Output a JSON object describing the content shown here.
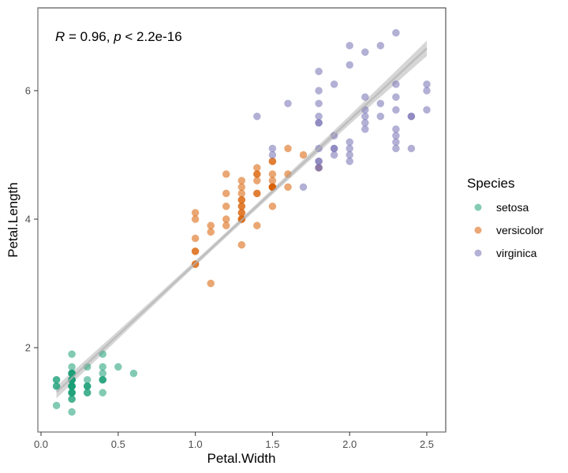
{
  "chart_data": {
    "type": "scatter",
    "title": "",
    "xlabel": "Petal.Width",
    "ylabel": "Petal.Length",
    "xlim": [
      -0.02,
      2.62
    ],
    "ylim": [
      0.67,
      7.27
    ],
    "x_ticks": [
      0.0,
      0.5,
      1.0,
      1.5,
      2.0,
      2.5
    ],
    "x_tick_labels": [
      "0.0",
      "0.5",
      "1.0",
      "1.5",
      "2.0",
      "2.5"
    ],
    "y_ticks": [
      2,
      4,
      6
    ],
    "y_tick_labels": [
      "2",
      "4",
      "6"
    ],
    "grid": false,
    "annotation": {
      "r_symbol": "R",
      "r_text": " = 0.96, ",
      "p_symbol": "p",
      "p_text": " < 2.2e-16"
    },
    "legend": {
      "title": "Species",
      "placement": "right"
    },
    "regression": {
      "intercept": 1.0836,
      "slope": 2.2299,
      "x_range": [
        0.1,
        2.5
      ],
      "ci_halfwidth_ends": 0.12,
      "ci_halfwidth_mid": 0.04,
      "x_mean": 1.199
    },
    "series": [
      {
        "name": "setosa",
        "color": "#1b9e77",
        "x": [
          0.2,
          0.2,
          0.2,
          0.2,
          0.2,
          0.4,
          0.3,
          0.2,
          0.2,
          0.1,
          0.2,
          0.2,
          0.1,
          0.1,
          0.2,
          0.4,
          0.4,
          0.3,
          0.3,
          0.3,
          0.2,
          0.4,
          0.2,
          0.5,
          0.2,
          0.2,
          0.4,
          0.2,
          0.2,
          0.2,
          0.2,
          0.4,
          0.1,
          0.2,
          0.2,
          0.2,
          0.2,
          0.1,
          0.2,
          0.2,
          0.3,
          0.3,
          0.2,
          0.6,
          0.4,
          0.3,
          0.2,
          0.2,
          0.2,
          0.2
        ],
        "y": [
          1.4,
          1.4,
          1.3,
          1.5,
          1.4,
          1.7,
          1.4,
          1.5,
          1.4,
          1.5,
          1.5,
          1.6,
          1.4,
          1.1,
          1.2,
          1.5,
          1.3,
          1.4,
          1.7,
          1.5,
          1.7,
          1.5,
          1.0,
          1.7,
          1.9,
          1.6,
          1.6,
          1.5,
          1.4,
          1.6,
          1.6,
          1.5,
          1.5,
          1.4,
          1.5,
          1.2,
          1.3,
          1.4,
          1.3,
          1.5,
          1.3,
          1.3,
          1.3,
          1.6,
          1.9,
          1.4,
          1.6,
          1.4,
          1.5,
          1.4
        ]
      },
      {
        "name": "versicolor",
        "color": "#d95f02",
        "x": [
          1.4,
          1.5,
          1.5,
          1.3,
          1.5,
          1.3,
          1.6,
          1.0,
          1.3,
          1.4,
          1.0,
          1.5,
          1.0,
          1.4,
          1.3,
          1.4,
          1.5,
          1.0,
          1.5,
          1.1,
          1.8,
          1.3,
          1.5,
          1.2,
          1.3,
          1.4,
          1.4,
          1.7,
          1.5,
          1.0,
          1.1,
          1.0,
          1.2,
          1.6,
          1.5,
          1.6,
          1.5,
          1.3,
          1.3,
          1.3,
          1.2,
          1.4,
          1.2,
          1.0,
          1.3,
          1.2,
          1.3,
          1.3,
          1.1,
          1.3
        ],
        "y": [
          4.7,
          4.5,
          4.9,
          4.0,
          4.6,
          4.5,
          4.7,
          3.3,
          4.6,
          3.9,
          3.5,
          4.2,
          4.0,
          4.7,
          3.6,
          4.4,
          4.5,
          4.1,
          4.5,
          3.9,
          4.8,
          4.0,
          4.9,
          4.7,
          4.3,
          4.4,
          4.8,
          5.0,
          4.5,
          3.5,
          3.8,
          3.7,
          3.9,
          5.1,
          4.5,
          4.5,
          4.7,
          4.4,
          4.1,
          4.0,
          4.4,
          4.6,
          4.0,
          3.3,
          4.2,
          4.2,
          4.2,
          4.3,
          3.0,
          4.1
        ]
      },
      {
        "name": "virginica",
        "color": "#7570b3",
        "x": [
          2.5,
          1.9,
          2.1,
          1.8,
          2.2,
          2.1,
          1.7,
          1.8,
          1.8,
          2.5,
          2.0,
          1.9,
          2.1,
          2.0,
          2.4,
          2.3,
          1.8,
          2.2,
          2.3,
          1.5,
          2.3,
          2.0,
          2.0,
          1.8,
          2.1,
          1.8,
          1.8,
          1.8,
          2.1,
          1.6,
          1.9,
          2.0,
          2.2,
          1.5,
          1.4,
          2.3,
          2.4,
          1.8,
          1.8,
          2.1,
          2.4,
          2.3,
          1.9,
          2.3,
          2.5,
          2.3,
          1.9,
          2.0,
          2.3,
          1.8
        ],
        "y": [
          6.0,
          5.1,
          5.9,
          5.6,
          5.8,
          6.6,
          4.5,
          6.3,
          5.8,
          6.1,
          5.1,
          5.3,
          5.5,
          5.0,
          5.1,
          5.3,
          5.5,
          6.7,
          6.9,
          5.0,
          5.7,
          4.9,
          6.7,
          4.9,
          5.7,
          6.0,
          4.8,
          4.9,
          5.6,
          5.8,
          6.1,
          6.4,
          5.6,
          5.1,
          5.6,
          6.1,
          5.6,
          5.5,
          4.8,
          5.4,
          5.6,
          5.1,
          5.1,
          5.9,
          5.7,
          5.2,
          5.0,
          5.2,
          5.4,
          5.1
        ]
      }
    ]
  }
}
